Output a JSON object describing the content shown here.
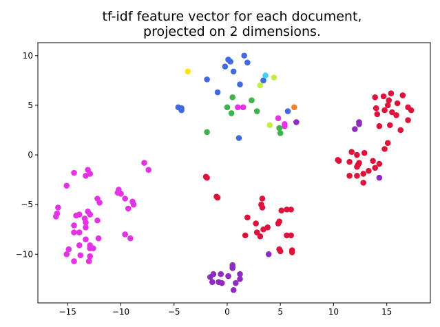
{
  "chart_data": {
    "type": "scatter",
    "title": [
      "tf-idf feature vector for each document,",
      "projected on 2 dimensions."
    ],
    "xlim": [
      -17.8,
      19.1
    ],
    "ylim": [
      -14.9,
      11.3
    ],
    "xticks": [
      {
        "value": -15,
        "label": "−15"
      },
      {
        "value": -10,
        "label": "−10"
      },
      {
        "value": -5,
        "label": "−5"
      },
      0,
      5,
      10,
      15
    ],
    "yticks": [
      {
        "value": -10,
        "label": "−10"
      },
      {
        "value": -5,
        "label": "−5"
      },
      0,
      5,
      10
    ],
    "series": [
      {
        "color": "#e433e4",
        "x": [
          -14.4,
          -13.1,
          -12.9,
          -13.3,
          -15.1,
          -15.9,
          -16.0,
          -16.1,
          -12.2,
          -12.0,
          -14.2,
          -13.9,
          -13.1,
          -13.4,
          -12.9,
          -14.4,
          -13.3,
          -14.4,
          -13.9,
          -12.2,
          -13.3,
          -12.1,
          -14.9,
          -15.1,
          -13.9,
          -13.8,
          -12.9,
          -12.9,
          -12.6,
          -13.0,
          -14.4,
          -12.9,
          -10.2,
          -10.3,
          -10.0,
          -9.6,
          -9.3,
          -8.9,
          -8.8,
          -9.6,
          -9.1,
          -7.8,
          -7.4,
          -13.3,
          1.0,
          1.5,
          4.8,
          5.4,
          5.4
        ],
        "values": [
          -1.8,
          -1.5,
          -1.9,
          -2.1,
          -3.1,
          -5.3,
          -5.9,
          -6.2,
          -4.4,
          -4.8,
          -6.1,
          -6.0,
          -5.7,
          -6.4,
          -6.0,
          -7.1,
          -6.8,
          -7.8,
          -7.8,
          -6.6,
          -7.3,
          -8.4,
          -9.5,
          -10.0,
          -9.1,
          -10.1,
          -9.1,
          -9.4,
          -9.4,
          -10.7,
          -10.7,
          -10.2,
          -3.5,
          -3.8,
          -3.9,
          -4.4,
          -5.4,
          -4.7,
          -5.0,
          -8.0,
          -8.4,
          -0.8,
          -1.5,
          -8.5,
          4.8,
          4.8,
          3.7,
          3.1,
          2.9
        ]
      },
      {
        "color": "#dc143c",
        "x": [
          13.9,
          14.7,
          15.4,
          16.5,
          14.0,
          15.2,
          15.1,
          16.0,
          14.1,
          14.8,
          15.5,
          15.9,
          17.0,
          17.3,
          14.3,
          15.3,
          16.3,
          17.0,
          15.1,
          14.8,
          10.4,
          10.5,
          11.7,
          12.2,
          12.9,
          11.5,
          12.4,
          13.7,
          14.3,
          12.2,
          12.3,
          11.5,
          12.2,
          12.8,
          13.3,
          13.9,
          12.8,
          -2.0,
          -1.9,
          -1.0,
          -0.9,
          3.3,
          3.2,
          3.3,
          1.9,
          2.7,
          1.7,
          3.1,
          2.8,
          3.4,
          3.8,
          4.8,
          4.9,
          5.1,
          5.6,
          6.0,
          5.6,
          6.0,
          4.9,
          5.0,
          6.1,
          6.1
        ],
        "values": [
          5.8,
          5.9,
          6.2,
          6.0,
          4.7,
          5.5,
          5.0,
          5.2,
          4.1,
          4.5,
          4.3,
          4.0,
          4.8,
          4.5,
          2.9,
          3.0,
          2.5,
          3.5,
          1.2,
          0.6,
          -0.5,
          -0.6,
          0.3,
          0.0,
          0.2,
          -0.7,
          -0.8,
          -0.6,
          -0.9,
          -1.2,
          -1.0,
          -2.1,
          -2.1,
          -1.9,
          -1.6,
          -1.3,
          -2.8,
          -2.2,
          -2.3,
          -4.2,
          -4.3,
          -4.4,
          -5.0,
          -5.3,
          -6.3,
          -6.9,
          -8.1,
          -8.2,
          -7.8,
          -7.5,
          -7.3,
          -6.9,
          -6.7,
          -5.6,
          -5.5,
          -5.5,
          -8.1,
          -8.1,
          -9.5,
          -9.7,
          -9.6,
          -9.8
        ]
      },
      {
        "color": "#4169e1",
        "x": [
          1.6,
          1.9,
          0.1,
          0.3,
          -0.2,
          0.6,
          -1.9,
          -0.9,
          1.2,
          3.4,
          5.7,
          -4.6,
          -4.3,
          -4.3,
          1.1
        ],
        "values": [
          10.0,
          9.3,
          9.6,
          9.4,
          8.9,
          8.4,
          7.6,
          6.3,
          7.1,
          7.5,
          4.4,
          4.8,
          4.7,
          4.5,
          1.7
        ]
      },
      {
        "color": "#3cb44b",
        "x": [
          0.5,
          2.3,
          0.0,
          0.4,
          2.8,
          -1.9,
          4.9,
          5.0
        ],
        "values": [
          5.8,
          5.5,
          4.8,
          4.2,
          4.4,
          2.3,
          2.7,
          2.2
        ]
      },
      {
        "color": "#8e2bc0",
        "x": [
          6.5,
          12.0,
          12.4,
          12.4,
          14.3,
          3.9,
          0.5,
          0.5,
          0.5,
          -1.6,
          -1.3,
          -1.4,
          -0.6,
          -0.8,
          -0.5,
          0.1,
          1.2,
          1.2,
          0.8,
          0.6
        ],
        "values": [
          3.3,
          2.6,
          3.3,
          3.1,
          -2.3,
          -10.0,
          -11.1,
          -11.4,
          -11.3,
          -12.3,
          -12.0,
          -12.8,
          -12.0,
          -12.8,
          -12.9,
          -12.2,
          -12.0,
          -12.5,
          -12.9,
          -13.6
        ]
      },
      {
        "color": "#ffe119",
        "x": [
          -3.7
        ],
        "values": [
          8.4
        ]
      },
      {
        "color": "#bfef45",
        "x": [
          4.4,
          3.1,
          4.0
        ],
        "values": [
          7.8,
          7.0,
          3.0
        ]
      },
      {
        "color": "#42d4f4",
        "x": [
          3.6
        ],
        "values": [
          8.0
        ]
      },
      {
        "color": "#f58231",
        "x": [
          6.3
        ],
        "values": [
          4.8
        ]
      }
    ]
  }
}
